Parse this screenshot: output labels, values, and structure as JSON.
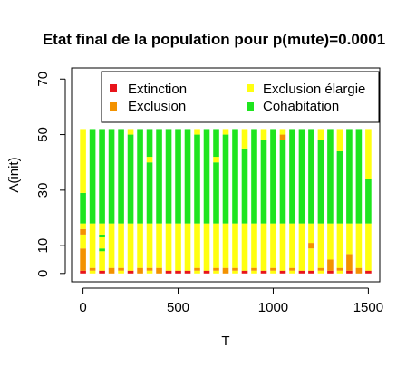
{
  "chart_data": {
    "type": "bar",
    "stacked": true,
    "title": "Etat final de la population pour p(mute)=0.0001",
    "xlabel": "T",
    "ylabel": "A(init)",
    "xlim": [
      -60,
      1560
    ],
    "ylim": [
      -3,
      74
    ],
    "xticks": [
      0,
      500,
      1000,
      1500
    ],
    "yticks": [
      0,
      10,
      30,
      50,
      70
    ],
    "x": [
      0,
      50,
      100,
      150,
      200,
      250,
      300,
      350,
      400,
      450,
      500,
      550,
      600,
      650,
      700,
      750,
      800,
      850,
      900,
      950,
      1000,
      1050,
      1100,
      1150,
      1200,
      1250,
      1300,
      1350,
      1400,
      1450,
      1500
    ],
    "a_init_min": 0,
    "a_init_max": 52,
    "legend": {
      "position": "top-right",
      "entries": [
        {
          "label": "Extinction",
          "color": "#e8141b"
        },
        {
          "label": "Exclusion élargie",
          "color": "#ffff10"
        },
        {
          "label": "Exclusion",
          "color": "#f39200"
        },
        {
          "label": "Cohabitation",
          "color": "#1ee51e"
        }
      ]
    },
    "colors": {
      "Extinction": "#e8141b",
      "Exclusion": "#f39200",
      "Exclusion élargie": "#ffff10",
      "Cohabitation": "#1ee51e"
    },
    "columns": [
      {
        "T": 0,
        "segments": [
          [
            0,
            1,
            "Extinction"
          ],
          [
            1,
            9,
            "Exclusion"
          ],
          [
            9,
            14,
            "Exclusion élargie"
          ],
          [
            14,
            16,
            "Exclusion"
          ],
          [
            16,
            18,
            "Exclusion élargie"
          ],
          [
            18,
            29,
            "Cohabitation"
          ],
          [
            29,
            52,
            "Exclusion élargie"
          ]
        ]
      },
      {
        "T": 50,
        "segments": [
          [
            0,
            1,
            "Exclusion élargie"
          ],
          [
            1,
            2,
            "Exclusion"
          ],
          [
            2,
            18,
            "Exclusion élargie"
          ],
          [
            18,
            52,
            "Cohabitation"
          ]
        ]
      },
      {
        "T": 100,
        "segments": [
          [
            0,
            1,
            "Extinction"
          ],
          [
            1,
            8,
            "Exclusion élargie"
          ],
          [
            8,
            9,
            "Cohabitation"
          ],
          [
            9,
            13,
            "Exclusion élargie"
          ],
          [
            13,
            14,
            "Cohabitation"
          ],
          [
            14,
            18,
            "Exclusion élargie"
          ],
          [
            18,
            52,
            "Cohabitation"
          ]
        ]
      },
      {
        "T": 150,
        "segments": [
          [
            0,
            2,
            "Exclusion"
          ],
          [
            2,
            18,
            "Exclusion élargie"
          ],
          [
            18,
            52,
            "Cohabitation"
          ]
        ]
      },
      {
        "T": 200,
        "segments": [
          [
            0,
            1,
            "Exclusion élargie"
          ],
          [
            1,
            2,
            "Exclusion"
          ],
          [
            2,
            18,
            "Exclusion élargie"
          ],
          [
            18,
            52,
            "Cohabitation"
          ]
        ]
      },
      {
        "T": 250,
        "segments": [
          [
            0,
            1,
            "Extinction"
          ],
          [
            1,
            18,
            "Exclusion élargie"
          ],
          [
            18,
            50,
            "Cohabitation"
          ],
          [
            50,
            52,
            "Exclusion élargie"
          ]
        ]
      },
      {
        "T": 300,
        "segments": [
          [
            0,
            2,
            "Exclusion"
          ],
          [
            2,
            18,
            "Exclusion élargie"
          ],
          [
            18,
            52,
            "Cohabitation"
          ]
        ]
      },
      {
        "T": 350,
        "segments": [
          [
            0,
            1,
            "Exclusion élargie"
          ],
          [
            1,
            2,
            "Exclusion"
          ],
          [
            2,
            18,
            "Exclusion élargie"
          ],
          [
            18,
            40,
            "Cohabitation"
          ],
          [
            40,
            42,
            "Exclusion élargie"
          ],
          [
            42,
            52,
            "Cohabitation"
          ]
        ]
      },
      {
        "T": 400,
        "segments": [
          [
            0,
            2,
            "Exclusion"
          ],
          [
            2,
            18,
            "Exclusion élargie"
          ],
          [
            18,
            52,
            "Cohabitation"
          ]
        ]
      },
      {
        "T": 450,
        "segments": [
          [
            0,
            1,
            "Extinction"
          ],
          [
            1,
            18,
            "Exclusion élargie"
          ],
          [
            18,
            52,
            "Cohabitation"
          ]
        ]
      },
      {
        "T": 500,
        "segments": [
          [
            0,
            1,
            "Extinction"
          ],
          [
            1,
            18,
            "Exclusion élargie"
          ],
          [
            18,
            52,
            "Cohabitation"
          ]
        ]
      },
      {
        "T": 550,
        "segments": [
          [
            0,
            1,
            "Extinction"
          ],
          [
            1,
            18,
            "Exclusion élargie"
          ],
          [
            18,
            52,
            "Cohabitation"
          ]
        ]
      },
      {
        "T": 600,
        "segments": [
          [
            0,
            1,
            "Exclusion élargie"
          ],
          [
            1,
            2,
            "Exclusion"
          ],
          [
            2,
            18,
            "Exclusion élargie"
          ],
          [
            18,
            50,
            "Cohabitation"
          ],
          [
            50,
            52,
            "Exclusion élargie"
          ]
        ]
      },
      {
        "T": 650,
        "segments": [
          [
            0,
            1,
            "Extinction"
          ],
          [
            1,
            18,
            "Exclusion élargie"
          ],
          [
            18,
            52,
            "Cohabitation"
          ]
        ]
      },
      {
        "T": 700,
        "segments": [
          [
            0,
            1,
            "Exclusion élargie"
          ],
          [
            1,
            2,
            "Exclusion"
          ],
          [
            2,
            18,
            "Exclusion élargie"
          ],
          [
            18,
            40,
            "Cohabitation"
          ],
          [
            40,
            42,
            "Exclusion élargie"
          ],
          [
            42,
            52,
            "Cohabitation"
          ]
        ]
      },
      {
        "T": 750,
        "segments": [
          [
            0,
            2,
            "Exclusion"
          ],
          [
            2,
            18,
            "Exclusion élargie"
          ],
          [
            18,
            50,
            "Cohabitation"
          ],
          [
            50,
            52,
            "Exclusion élargie"
          ]
        ]
      },
      {
        "T": 800,
        "segments": [
          [
            0,
            1,
            "Exclusion élargie"
          ],
          [
            1,
            2,
            "Exclusion"
          ],
          [
            2,
            18,
            "Exclusion élargie"
          ],
          [
            18,
            52,
            "Cohabitation"
          ]
        ]
      },
      {
        "T": 850,
        "segments": [
          [
            0,
            1,
            "Extinction"
          ],
          [
            1,
            18,
            "Exclusion élargie"
          ],
          [
            18,
            45,
            "Cohabitation"
          ],
          [
            45,
            52,
            "Exclusion élargie"
          ]
        ]
      },
      {
        "T": 900,
        "segments": [
          [
            0,
            1,
            "Exclusion élargie"
          ],
          [
            1,
            2,
            "Exclusion"
          ],
          [
            2,
            18,
            "Exclusion élargie"
          ],
          [
            18,
            52,
            "Cohabitation"
          ]
        ]
      },
      {
        "T": 950,
        "segments": [
          [
            0,
            1,
            "Extinction"
          ],
          [
            1,
            18,
            "Exclusion élargie"
          ],
          [
            18,
            48,
            "Cohabitation"
          ],
          [
            48,
            52,
            "Exclusion élargie"
          ]
        ]
      },
      {
        "T": 1000,
        "segments": [
          [
            0,
            1,
            "Exclusion élargie"
          ],
          [
            1,
            2,
            "Exclusion"
          ],
          [
            2,
            18,
            "Exclusion élargie"
          ],
          [
            18,
            52,
            "Cohabitation"
          ]
        ]
      },
      {
        "T": 1050,
        "segments": [
          [
            0,
            1,
            "Extinction"
          ],
          [
            1,
            18,
            "Exclusion élargie"
          ],
          [
            18,
            48,
            "Cohabitation"
          ],
          [
            48,
            50,
            "Exclusion"
          ],
          [
            50,
            52,
            "Exclusion élargie"
          ]
        ]
      },
      {
        "T": 1100,
        "segments": [
          [
            0,
            1,
            "Exclusion élargie"
          ],
          [
            1,
            2,
            "Exclusion"
          ],
          [
            2,
            18,
            "Exclusion élargie"
          ],
          [
            18,
            52,
            "Cohabitation"
          ]
        ]
      },
      {
        "T": 1150,
        "segments": [
          [
            0,
            1,
            "Extinction"
          ],
          [
            1,
            18,
            "Exclusion élargie"
          ],
          [
            18,
            52,
            "Cohabitation"
          ]
        ]
      },
      {
        "T": 1200,
        "segments": [
          [
            0,
            1,
            "Extinction"
          ],
          [
            1,
            9,
            "Exclusion élargie"
          ],
          [
            9,
            11,
            "Exclusion"
          ],
          [
            11,
            18,
            "Exclusion élargie"
          ],
          [
            18,
            52,
            "Cohabitation"
          ]
        ]
      },
      {
        "T": 1250,
        "segments": [
          [
            0,
            1,
            "Exclusion élargie"
          ],
          [
            1,
            2,
            "Exclusion"
          ],
          [
            2,
            18,
            "Exclusion élargie"
          ],
          [
            18,
            48,
            "Cohabitation"
          ],
          [
            48,
            52,
            "Exclusion élargie"
          ]
        ]
      },
      {
        "T": 1300,
        "segments": [
          [
            0,
            1,
            "Extinction"
          ],
          [
            1,
            5,
            "Exclusion"
          ],
          [
            5,
            18,
            "Exclusion élargie"
          ],
          [
            18,
            52,
            "Cohabitation"
          ]
        ]
      },
      {
        "T": 1350,
        "segments": [
          [
            0,
            1,
            "Exclusion élargie"
          ],
          [
            1,
            2,
            "Exclusion"
          ],
          [
            2,
            18,
            "Exclusion élargie"
          ],
          [
            18,
            44,
            "Cohabitation"
          ],
          [
            44,
            52,
            "Exclusion élargie"
          ]
        ]
      },
      {
        "T": 1400,
        "segments": [
          [
            0,
            1,
            "Extinction"
          ],
          [
            1,
            7,
            "Exclusion"
          ],
          [
            7,
            18,
            "Exclusion élargie"
          ],
          [
            18,
            52,
            "Cohabitation"
          ]
        ]
      },
      {
        "T": 1450,
        "segments": [
          [
            0,
            2,
            "Exclusion"
          ],
          [
            2,
            18,
            "Exclusion élargie"
          ],
          [
            18,
            52,
            "Cohabitation"
          ]
        ]
      },
      {
        "T": 1500,
        "segments": [
          [
            0,
            1,
            "Extinction"
          ],
          [
            1,
            18,
            "Exclusion élargie"
          ],
          [
            18,
            34,
            "Cohabitation"
          ],
          [
            34,
            52,
            "Exclusion élargie"
          ]
        ]
      }
    ]
  }
}
